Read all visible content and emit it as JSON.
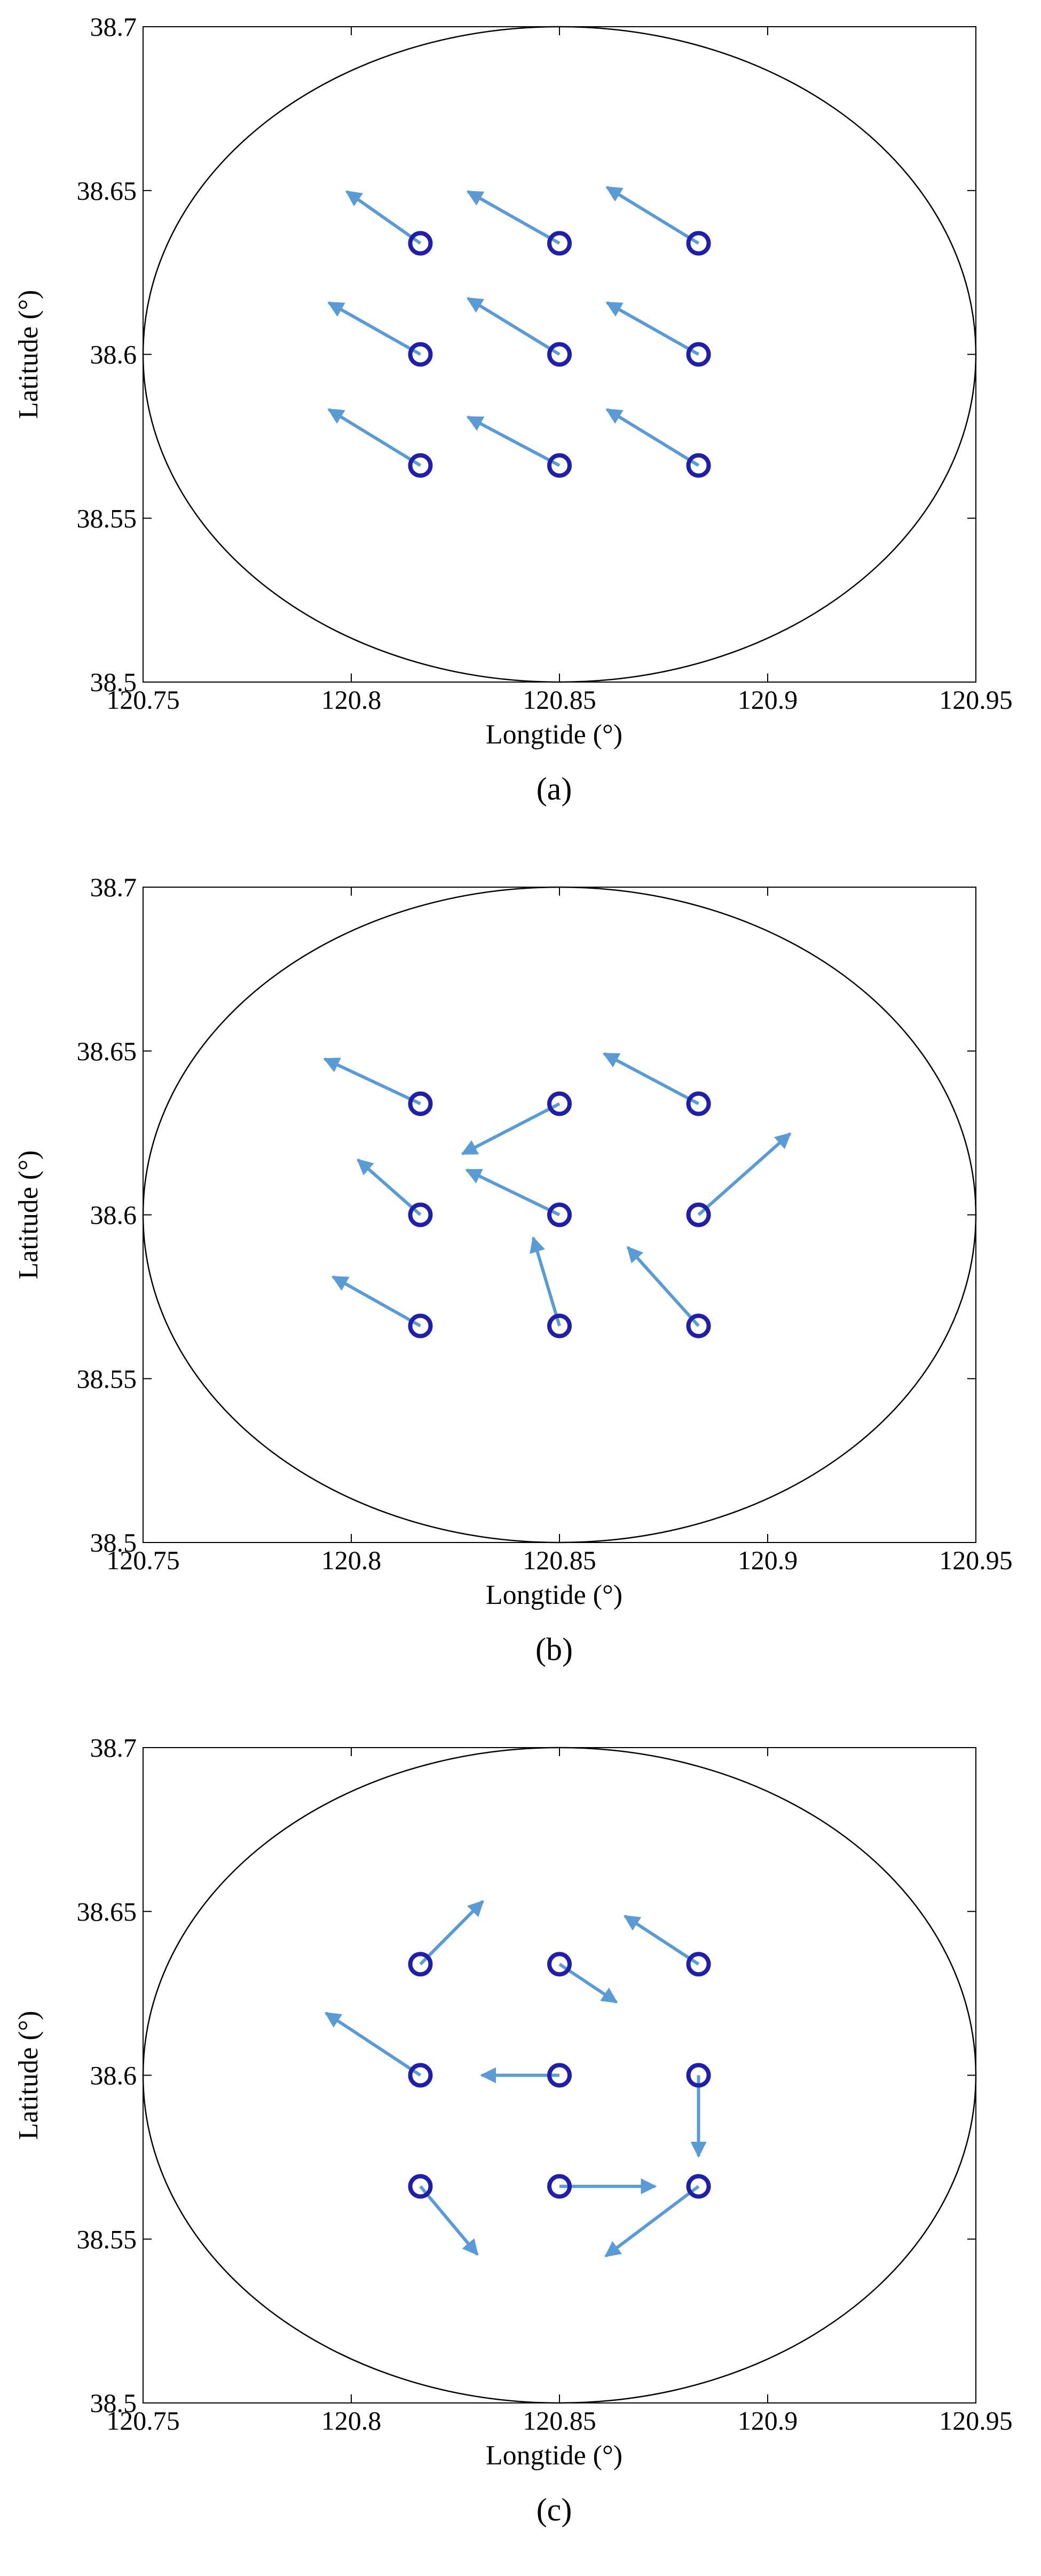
{
  "chart_data": [
    {
      "type": "scatter",
      "panel_label": "(a)",
      "xlabel": "Longtide (°)",
      "ylabel": "Latitude (°)",
      "xlim": [
        120.75,
        120.95
      ],
      "ylim": [
        38.5,
        38.7
      ],
      "xticks": [
        "120.75",
        "120.8",
        "120.85",
        "120.9",
        "120.95"
      ],
      "yticks": [
        "38.5",
        "38.55",
        "38.6",
        "38.65",
        "38.7"
      ],
      "grid": false,
      "boundary_ellipse": {
        "center": [
          120.85,
          38.6
        ],
        "radius_x": 0.1,
        "radius_y": 0.1
      },
      "marker_color": "#1f1fa8",
      "arrow_color": "#5b9bd5",
      "points": [
        {
          "x": 120.8166,
          "y": 38.6339,
          "dx": -0.0177,
          "dy": 0.0158
        },
        {
          "x": 120.85,
          "y": 38.6339,
          "dx": -0.022,
          "dy": 0.0158
        },
        {
          "x": 120.8834,
          "y": 38.6339,
          "dx": -0.022,
          "dy": 0.0171
        },
        {
          "x": 120.8166,
          "y": 38.6,
          "dx": -0.022,
          "dy": 0.0158
        },
        {
          "x": 120.85,
          "y": 38.6,
          "dx": -0.022,
          "dy": 0.0171
        },
        {
          "x": 120.8834,
          "y": 38.6,
          "dx": -0.022,
          "dy": 0.0158
        },
        {
          "x": 120.8166,
          "y": 38.5661,
          "dx": -0.022,
          "dy": 0.0171
        },
        {
          "x": 120.85,
          "y": 38.5661,
          "dx": -0.022,
          "dy": 0.0148
        },
        {
          "x": 120.8834,
          "y": 38.5661,
          "dx": -0.022,
          "dy": 0.0171
        }
      ]
    },
    {
      "type": "scatter",
      "panel_label": "(b)",
      "xlabel": "Longtide (°)",
      "ylabel": "Latitude (°)",
      "xlim": [
        120.75,
        120.95
      ],
      "ylim": [
        38.5,
        38.7
      ],
      "xticks": [
        "120.75",
        "120.8",
        "120.85",
        "120.9",
        "120.95"
      ],
      "yticks": [
        "38.5",
        "38.55",
        "38.6",
        "38.65",
        "38.7"
      ],
      "grid": false,
      "boundary_ellipse": {
        "center": [
          120.85,
          38.6
        ],
        "radius_x": 0.1,
        "radius_y": 0.1
      },
      "marker_color": "#1f1fa8",
      "arrow_color": "#5b9bd5",
      "points": [
        {
          "x": 120.8166,
          "y": 38.6339,
          "dx": -0.023,
          "dy": 0.0137
        },
        {
          "x": 120.85,
          "y": 38.6339,
          "dx": -0.0233,
          "dy": -0.0153
        },
        {
          "x": 120.8834,
          "y": 38.6339,
          "dx": -0.0227,
          "dy": 0.0153
        },
        {
          "x": 120.8166,
          "y": 38.6,
          "dx": -0.015,
          "dy": 0.0168
        },
        {
          "x": 120.85,
          "y": 38.6,
          "dx": -0.0223,
          "dy": 0.0137
        },
        {
          "x": 120.8834,
          "y": 38.6,
          "dx": 0.022,
          "dy": 0.0248
        },
        {
          "x": 120.8166,
          "y": 38.5661,
          "dx": -0.021,
          "dy": 0.015
        },
        {
          "x": 120.85,
          "y": 38.5661,
          "dx": -0.0063,
          "dy": 0.0269
        },
        {
          "x": 120.8834,
          "y": 38.5661,
          "dx": -0.017,
          "dy": 0.024
        }
      ]
    },
    {
      "type": "scatter",
      "panel_label": "(c)",
      "xlabel": "Longtide (°)",
      "ylabel": "Latitude (°)",
      "xlim": [
        120.75,
        120.95
      ],
      "ylim": [
        38.5,
        38.7
      ],
      "xticks": [
        "120.75",
        "120.8",
        "120.85",
        "120.9",
        "120.95"
      ],
      "yticks": [
        "38.5",
        "38.55",
        "38.6",
        "38.65",
        "38.7"
      ],
      "grid": false,
      "boundary_ellipse": {
        "center": [
          120.85,
          38.6
        ],
        "radius_x": 0.1,
        "radius_y": 0.1
      },
      "marker_color": "#1f1fa8",
      "arrow_color": "#5b9bd5",
      "points": [
        {
          "x": 120.8166,
          "y": 38.6339,
          "dx": 0.015,
          "dy": 0.0192
        },
        {
          "x": 120.85,
          "y": 38.6339,
          "dx": 0.0137,
          "dy": -0.0116
        },
        {
          "x": 120.8834,
          "y": 38.6339,
          "dx": -0.0177,
          "dy": 0.0147
        },
        {
          "x": 120.8166,
          "y": 38.6,
          "dx": -0.0227,
          "dy": 0.019
        },
        {
          "x": 120.85,
          "y": 38.6,
          "dx": -0.0187,
          "dy": 0.0
        },
        {
          "x": 120.8834,
          "y": 38.6,
          "dx": 0.0,
          "dy": -0.0247
        },
        {
          "x": 120.8166,
          "y": 38.5661,
          "dx": 0.0137,
          "dy": -0.0208
        },
        {
          "x": 120.85,
          "y": 38.5661,
          "dx": 0.023,
          "dy": 0.0
        },
        {
          "x": 120.8834,
          "y": 38.5661,
          "dx": -0.0223,
          "dy": -0.0213
        }
      ]
    }
  ]
}
